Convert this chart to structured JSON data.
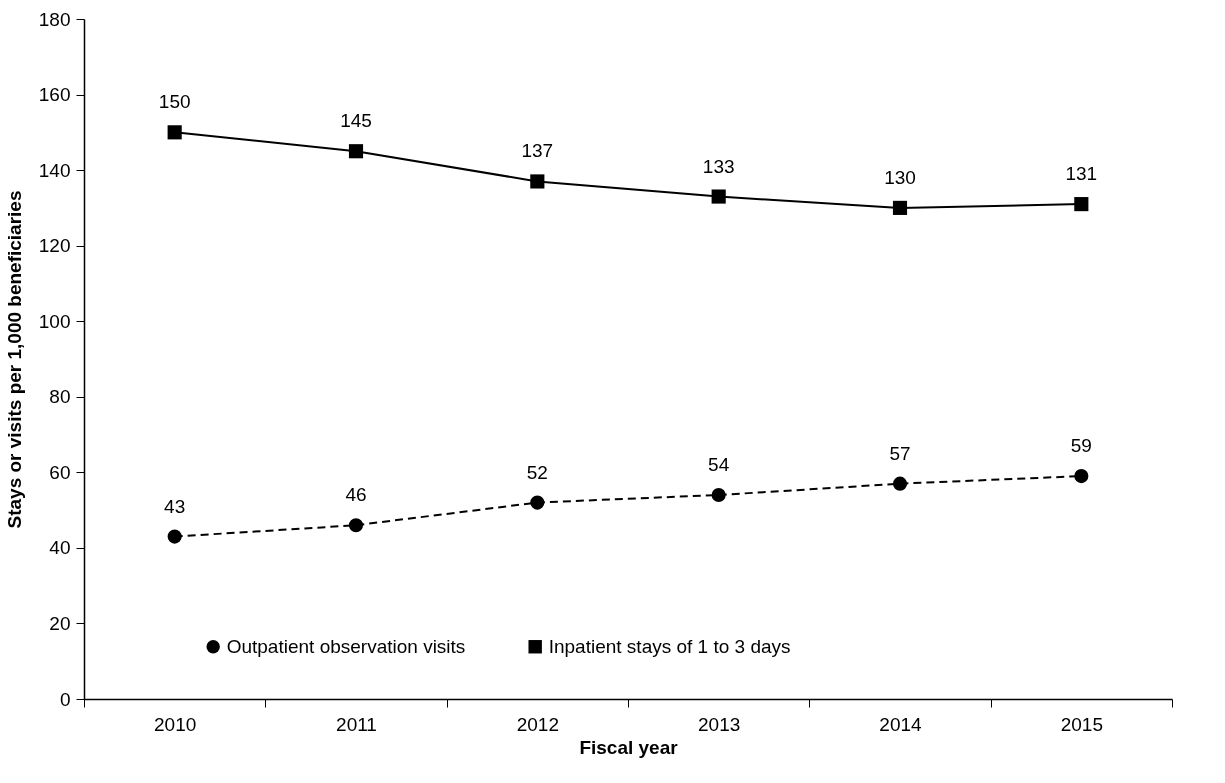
{
  "chart_data": {
    "type": "line",
    "xlabel": "Fiscal year",
    "ylabel": "Stays or visits per 1,000 beneficiaries",
    "categories": [
      "2010",
      "2011",
      "2012",
      "2013",
      "2014",
      "2015"
    ],
    "series": [
      {
        "name": "Outpatient observation visits",
        "color": "#000000",
        "marker": "circle",
        "line_style": "dashed",
        "values": [
          43,
          46,
          52,
          54,
          57,
          59
        ]
      },
      {
        "name": "Inpatient stays of 1 to 3 days",
        "color": "#000000",
        "marker": "square",
        "line_style": "solid",
        "values": [
          150,
          145,
          137,
          133,
          130,
          131
        ]
      }
    ],
    "ylim": [
      0,
      180
    ],
    "yticks": [
      0,
      20,
      40,
      60,
      80,
      100,
      120,
      140,
      160,
      180
    ],
    "grid": false,
    "legend": "bottom",
    "data_labels": true
  }
}
